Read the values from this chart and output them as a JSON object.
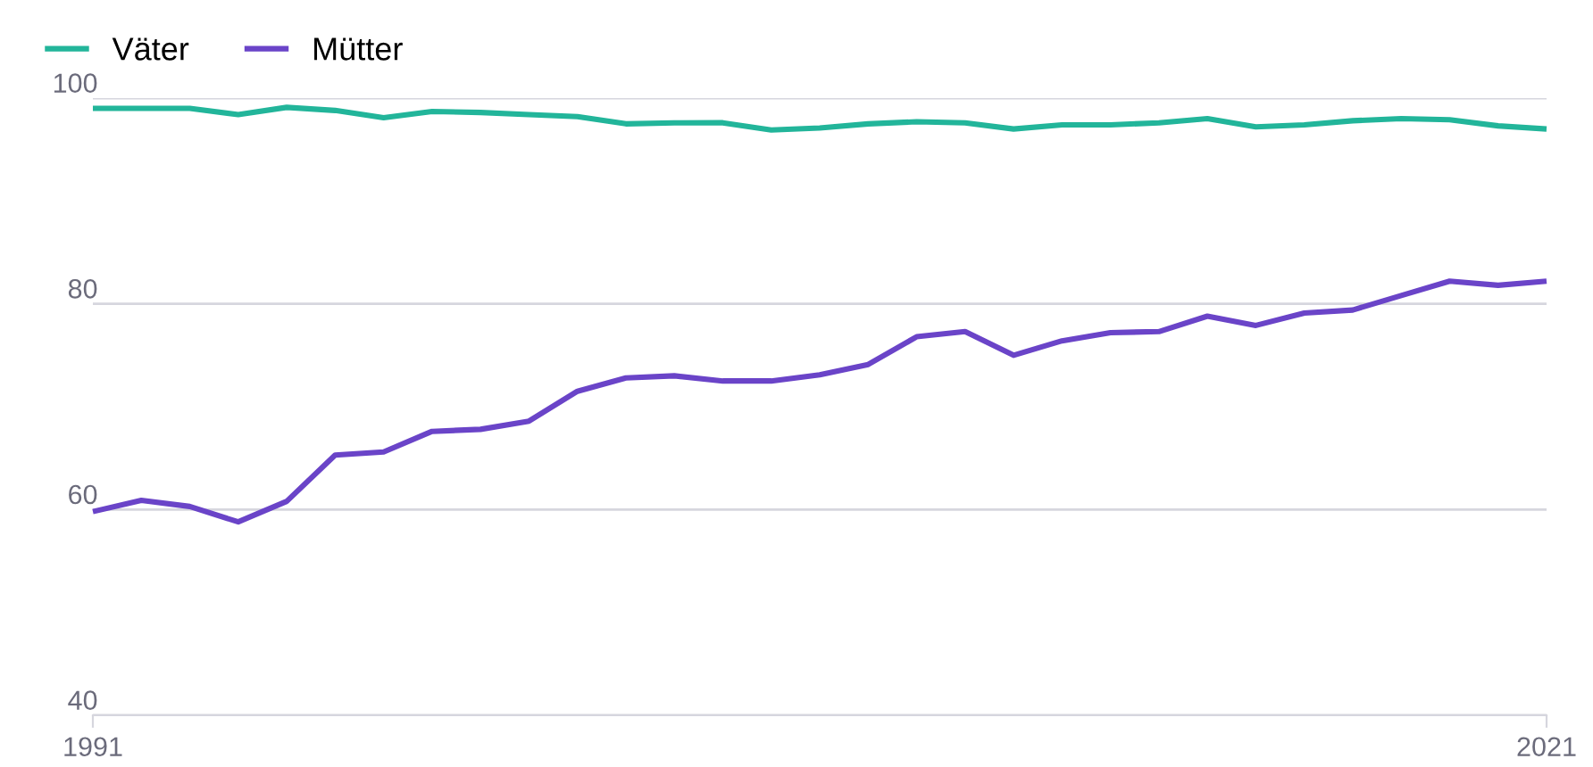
{
  "chart_data": {
    "type": "line",
    "x": [
      1991,
      1992,
      1993,
      1994,
      1995,
      1996,
      1997,
      1998,
      1999,
      2000,
      2001,
      2002,
      2003,
      2004,
      2005,
      2006,
      2007,
      2008,
      2009,
      2010,
      2011,
      2012,
      2013,
      2014,
      2015,
      2016,
      2017,
      2018,
      2019,
      2020,
      2021
    ],
    "series": [
      {
        "name": "Väter",
        "color": "#22b59a",
        "values": [
          99.0,
          99.0,
          99.0,
          98.4,
          99.1,
          98.8,
          98.1,
          98.7,
          98.6,
          98.4,
          98.2,
          97.5,
          97.6,
          97.6,
          96.9,
          97.1,
          97.5,
          97.7,
          97.6,
          97.0,
          97.4,
          97.4,
          97.6,
          98.0,
          97.2,
          97.4,
          97.8,
          98.0,
          97.9,
          97.3,
          97.0
        ]
      },
      {
        "name": "Mütter",
        "color": "#6a44c8",
        "values": [
          59.8,
          60.9,
          60.3,
          58.8,
          60.8,
          65.3,
          65.6,
          67.6,
          67.8,
          68.6,
          71.5,
          72.8,
          73.0,
          72.5,
          72.5,
          73.1,
          74.1,
          76.8,
          77.3,
          75.0,
          76.4,
          77.2,
          77.3,
          78.8,
          77.9,
          79.1,
          79.4,
          80.8,
          82.2,
          81.8,
          82.2
        ]
      }
    ],
    "xlim": [
      1991,
      2021
    ],
    "xticks": [
      1991,
      2021
    ],
    "ylim": [
      40,
      100
    ],
    "yticks": [
      40,
      60,
      80,
      100
    ],
    "grid": "y",
    "legend": "top left",
    "marker": "none",
    "line_style": "solid"
  }
}
